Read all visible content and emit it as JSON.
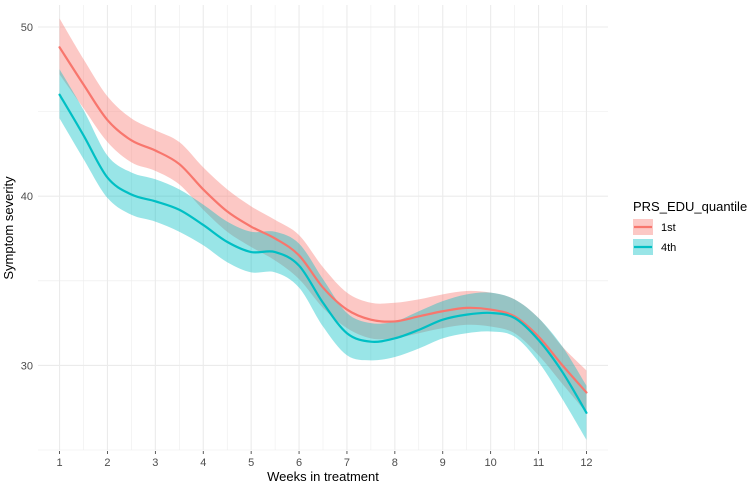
{
  "chart_data": {
    "type": "line",
    "title": "",
    "xlabel": "Weeks in treatment",
    "ylabel": "Symptom severity",
    "xlim": [
      0.55,
      12.45
    ],
    "ylim": [
      25.0,
      51.3
    ],
    "grid": true,
    "x_ticks": [
      1,
      2,
      3,
      4,
      5,
      6,
      7,
      8,
      9,
      10,
      11,
      12
    ],
    "y_ticks": [
      30,
      40,
      50
    ],
    "legend": {
      "title": "PRS_EDU_quantile",
      "position": "right"
    },
    "x": [
      1,
      1.5,
      2,
      2.5,
      3,
      3.5,
      4,
      4.5,
      5,
      5.5,
      6,
      6.5,
      7,
      7.5,
      8,
      8.5,
      9,
      9.5,
      10,
      10.5,
      11,
      11.5,
      12
    ],
    "series": [
      {
        "name": "1st",
        "color": "#F8766D",
        "fill": "#F8766D",
        "values": [
          48.8,
          46.6,
          44.5,
          43.3,
          42.7,
          41.9,
          40.4,
          39.1,
          38.2,
          37.5,
          36.5,
          34.6,
          33.3,
          32.7,
          32.6,
          32.9,
          33.2,
          33.4,
          33.3,
          32.9,
          31.7,
          30.0,
          28.4
        ],
        "lower": [
          47.2,
          45.2,
          43.2,
          42.0,
          41.5,
          40.7,
          39.2,
          37.9,
          37.0,
          36.2,
          35.1,
          33.4,
          32.2,
          31.6,
          31.6,
          31.9,
          32.2,
          32.4,
          32.3,
          31.9,
          30.6,
          28.9,
          27.2
        ],
        "upper": [
          50.5,
          48.1,
          45.9,
          44.6,
          43.9,
          43.2,
          41.7,
          40.4,
          39.4,
          38.6,
          37.7,
          35.8,
          34.3,
          33.7,
          33.7,
          33.9,
          34.2,
          34.4,
          34.3,
          33.9,
          32.8,
          31.1,
          29.7
        ]
      },
      {
        "name": "4th",
        "color": "#00BFC4",
        "fill": "#00BFC4",
        "values": [
          46.0,
          43.6,
          41.1,
          40.1,
          39.7,
          39.2,
          38.3,
          37.3,
          36.7,
          36.7,
          35.9,
          33.7,
          31.9,
          31.4,
          31.6,
          32.1,
          32.7,
          33.0,
          33.1,
          32.8,
          31.5,
          29.6,
          27.2
        ],
        "lower": [
          44.6,
          42.2,
          39.9,
          38.9,
          38.5,
          37.9,
          37.1,
          36.1,
          35.5,
          35.5,
          34.6,
          32.3,
          30.6,
          30.3,
          30.5,
          31.0,
          31.6,
          31.9,
          32.0,
          31.7,
          30.2,
          28.0,
          25.6
        ],
        "upper": [
          47.5,
          45.1,
          42.4,
          41.4,
          41.0,
          40.4,
          39.5,
          38.5,
          37.9,
          37.9,
          37.2,
          35.1,
          33.1,
          32.5,
          32.6,
          33.2,
          33.8,
          34.2,
          34.3,
          33.9,
          32.8,
          31.1,
          28.8
        ]
      }
    ]
  }
}
